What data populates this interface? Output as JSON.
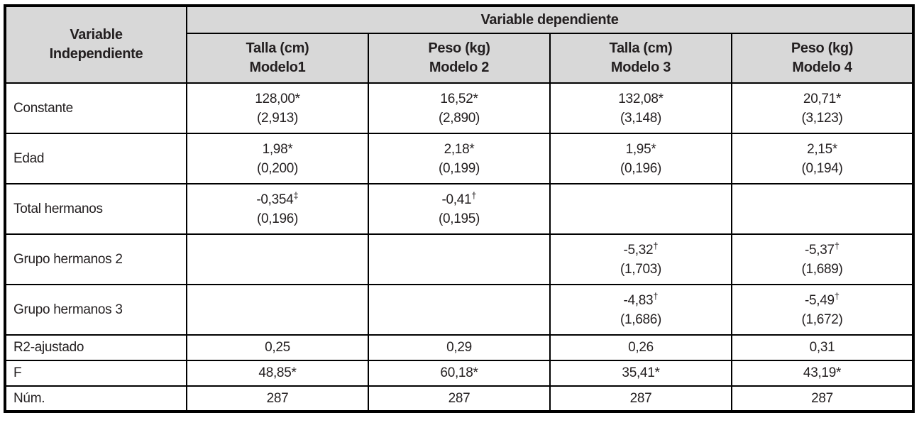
{
  "colors": {
    "header_bg": "#d8d8d8",
    "border": "#000000",
    "text": "#231f20"
  },
  "table": {
    "corner_header": {
      "line1": "Variable",
      "line2": "Independiente"
    },
    "group_header": "Variable dependiente",
    "columns": [
      {
        "line1": "Talla (cm)",
        "line2": "Modelo1"
      },
      {
        "line1": "Peso (kg)",
        "line2": "Modelo 2"
      },
      {
        "line1": "Talla (cm)",
        "line2": "Modelo 3"
      },
      {
        "line1": "Peso (kg)",
        "line2": "Modelo 4"
      }
    ],
    "rows": [
      {
        "label": "Constante",
        "cells": [
          {
            "v": "128,00*",
            "se": "(2,913)"
          },
          {
            "v": "16,52*",
            "se": "(2,890)"
          },
          {
            "v": "132,08*",
            "se": "(3,148)"
          },
          {
            "v": "20,71*",
            "se": "(3,123)"
          }
        ]
      },
      {
        "label": "Edad",
        "cells": [
          {
            "v": "1,98*",
            "se": "(0,200)"
          },
          {
            "v": "2,18*",
            "se": "(0,199)"
          },
          {
            "v": "1,95*",
            "se": "(0,196)"
          },
          {
            "v": "2,15*",
            "se": "(0,194)"
          }
        ]
      },
      {
        "label": "Total hermanos",
        "cells": [
          {
            "v": "-0,354",
            "sup": "‡",
            "se": "(0,196)"
          },
          {
            "v": "-0,41",
            "sup": "†",
            "se": "(0,195)"
          },
          {},
          {}
        ]
      },
      {
        "label": "Grupo hermanos 2",
        "cells": [
          {},
          {},
          {
            "v": "-5,32",
            "sup": "†",
            "se": "(1,703)"
          },
          {
            "v": "-5,37",
            "sup": "†",
            "se": "(1,689)"
          }
        ]
      },
      {
        "label": "Grupo hermanos 3",
        "cells": [
          {},
          {},
          {
            "v": "-4,83",
            "sup": "†",
            "se": "(1,686)"
          },
          {
            "v": "-5,49",
            "sup": "†",
            "se": "(1,672)"
          }
        ]
      },
      {
        "label": "R2-ajustado",
        "cells": [
          {
            "v": "0,25"
          },
          {
            "v": "0,29"
          },
          {
            "v": "0,26"
          },
          {
            "v": "0,31"
          }
        ]
      },
      {
        "label": "F",
        "cells": [
          {
            "v": "48,85*"
          },
          {
            "v": "60,18*"
          },
          {
            "v": "35,41*"
          },
          {
            "v": "43,19*"
          }
        ]
      },
      {
        "label": "Núm.",
        "cells": [
          {
            "v": "287"
          },
          {
            "v": "287"
          },
          {
            "v": "287"
          },
          {
            "v": "287"
          }
        ]
      }
    ]
  }
}
